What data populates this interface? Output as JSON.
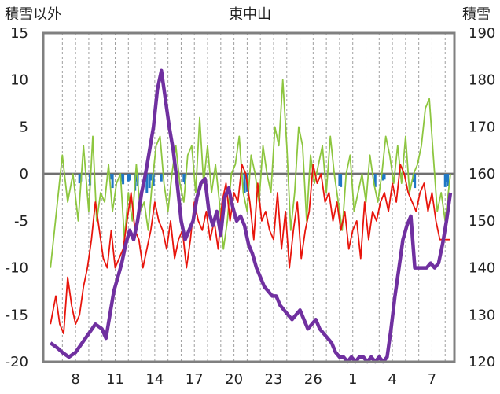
{
  "chart_data": {
    "type": "line",
    "title": "東中山",
    "ylabel_left": "積雪以外",
    "ylabel_right": "積雪",
    "yticks_left": [
      "15",
      "10",
      "5",
      "0",
      "-5",
      "-10",
      "-15",
      "-20"
    ],
    "yticks_right": [
      "190",
      "180",
      "170",
      "160",
      "150",
      "140",
      "130",
      "120"
    ],
    "ylim_left": [
      -20,
      15
    ],
    "ylim_right": [
      120,
      190
    ],
    "x_range": [
      0,
      28
    ],
    "xticks": [
      {
        "x": 1,
        "label": "8"
      },
      {
        "x": 4,
        "label": "11"
      },
      {
        "x": 7,
        "label": "14"
      },
      {
        "x": 10,
        "label": "17"
      },
      {
        "x": 13,
        "label": "20"
      },
      {
        "x": 16,
        "label": "23"
      },
      {
        "x": 19,
        "label": "26"
      },
      {
        "x": 22,
        "label": "1"
      },
      {
        "x": 25,
        "label": "4"
      },
      {
        "x": 28,
        "label": "7"
      }
    ],
    "grid": true,
    "colors": {
      "frame": "#808080",
      "grid": "#a0a0a0",
      "zero": "#707070"
    },
    "series": [
      {
        "axis": "left",
        "color": "#8dc63f",
        "kind": "line",
        "x": [
          -0.9,
          -0.6,
          -0.3,
          0.0,
          0.4,
          0.8,
          1.2,
          1.6,
          2.0,
          2.3,
          2.6,
          2.9,
          3.2,
          3.5,
          3.8,
          4.1,
          4.4,
          4.7,
          5.0,
          5.3,
          5.6,
          5.9,
          6.2,
          6.5,
          6.8,
          7.1,
          7.4,
          7.7,
          8.0,
          8.3,
          8.6,
          8.9,
          9.2,
          9.5,
          9.8,
          10.1,
          10.4,
          10.7,
          11.0,
          11.3,
          11.6,
          11.9,
          12.2,
          12.5,
          12.8,
          13.1,
          13.4,
          13.7,
          14.0,
          14.3,
          14.6,
          14.9,
          15.2,
          15.5,
          15.8,
          16.1,
          16.4,
          16.7,
          17.0,
          17.3,
          17.6,
          17.9,
          18.2,
          18.5,
          18.8,
          19.1,
          19.4,
          19.7,
          20.0,
          20.3,
          20.6,
          20.9,
          21.2,
          21.5,
          21.8,
          22.1,
          22.4,
          22.7,
          23.0,
          23.3,
          23.6,
          23.9,
          24.2,
          24.5,
          24.8,
          25.1,
          25.4,
          25.7,
          26.0,
          26.3,
          26.6,
          26.9,
          27.2,
          27.5,
          27.8,
          28.1,
          28.4,
          28.7,
          29.0,
          29.4
        ],
        "y": [
          -10,
          -6,
          -2,
          2,
          -3,
          0,
          -5,
          3,
          -4,
          4,
          -5,
          -2,
          -3,
          1,
          -4,
          -1,
          0,
          -7,
          -2,
          -5,
          1,
          -4,
          -3,
          -6,
          -1,
          3,
          4,
          -1,
          -4,
          0,
          3,
          -1,
          -3,
          2,
          3,
          -2,
          6,
          -1,
          3,
          -2,
          1,
          -3,
          -8,
          -5,
          0,
          1,
          4,
          -2,
          -4,
          2,
          0,
          -3,
          3,
          0,
          -2,
          5,
          3,
          10,
          3,
          -6,
          -2,
          5,
          3,
          -5,
          2,
          -1,
          1,
          3,
          -2,
          4,
          0,
          -3,
          -6,
          0,
          2,
          -4,
          -2,
          0,
          -3,
          2,
          -1,
          -3,
          0,
          4,
          2,
          -1,
          3,
          -1,
          4,
          -2,
          0,
          1,
          3,
          7,
          8,
          2,
          -4,
          -2,
          -5,
          0
        ]
      },
      {
        "axis": "left",
        "color": "#e8150c",
        "kind": "line",
        "x": [
          -0.9,
          -0.5,
          -0.2,
          0.1,
          0.4,
          0.7,
          1.0,
          1.3,
          1.6,
          1.9,
          2.2,
          2.5,
          2.8,
          3.1,
          3.4,
          3.7,
          4.0,
          4.3,
          4.6,
          4.9,
          5.2,
          5.5,
          5.8,
          6.1,
          6.4,
          6.7,
          7.0,
          7.3,
          7.6,
          7.9,
          8.2,
          8.5,
          8.8,
          9.1,
          9.4,
          9.7,
          10.0,
          10.3,
          10.6,
          10.9,
          11.2,
          11.5,
          11.8,
          12.1,
          12.4,
          12.7,
          13.0,
          13.3,
          13.6,
          13.9,
          14.2,
          14.5,
          14.8,
          15.1,
          15.4,
          15.7,
          16.0,
          16.3,
          16.6,
          16.9,
          17.2,
          17.5,
          17.8,
          18.1,
          18.4,
          18.7,
          19.0,
          19.3,
          19.6,
          19.9,
          20.2,
          20.5,
          20.8,
          21.1,
          21.4,
          21.7,
          22.0,
          22.3,
          22.6,
          22.9,
          23.2,
          23.5,
          23.8,
          24.1,
          24.4,
          24.7,
          25.0,
          25.3,
          25.6,
          25.9,
          26.2,
          26.5,
          26.8,
          27.1,
          27.4,
          27.7,
          28.0,
          28.3,
          28.6,
          29.0,
          29.4
        ],
        "y": [
          -16,
          -13,
          -16,
          -17,
          -11,
          -14,
          -16,
          -15,
          -12,
          -10,
          -7,
          -3,
          -6,
          -9,
          -10,
          -6,
          -10,
          -9,
          -8,
          -5,
          -2,
          -6,
          -7,
          -10,
          -8,
          -6,
          -3,
          -5,
          -6,
          -8,
          -5,
          -9,
          -7,
          -6,
          -10,
          -7,
          -3,
          -5,
          -6,
          -4,
          -7,
          -5,
          -8,
          -3,
          -1,
          -5,
          -2,
          -3,
          1,
          0,
          -3,
          -7,
          -1,
          -5,
          -4,
          -6,
          -7,
          -2,
          -8,
          -4,
          -10,
          -6,
          -3,
          -9,
          -6,
          -4,
          1,
          -1,
          0,
          -3,
          -2,
          -5,
          -3,
          -6,
          -4,
          -8,
          -6,
          -5,
          -9,
          -3,
          -7,
          -4,
          -5,
          -3,
          -2,
          -4,
          -1,
          -3,
          1,
          0,
          -2,
          -3,
          -4,
          -2,
          -1,
          -4,
          -2,
          -5,
          -7,
          -7,
          -7
        ]
      },
      {
        "axis": "right",
        "color": "#7030a0",
        "kind": "line",
        "x": [
          -0.9,
          -0.4,
          0.0,
          0.5,
          1.0,
          1.5,
          2.0,
          2.5,
          3.0,
          3.3,
          3.6,
          3.9,
          4.2,
          4.5,
          4.8,
          5.1,
          5.4,
          5.7,
          6.0,
          6.3,
          6.6,
          6.9,
          7.2,
          7.5,
          7.8,
          8.1,
          8.4,
          8.7,
          9.0,
          9.3,
          9.6,
          9.9,
          10.2,
          10.5,
          10.8,
          11.1,
          11.4,
          11.7,
          12.0,
          12.3,
          12.6,
          12.9,
          13.2,
          13.5,
          13.8,
          14.1,
          14.4,
          14.7,
          15.0,
          15.3,
          15.6,
          15.9,
          16.2,
          16.5,
          16.8,
          17.1,
          17.4,
          17.7,
          18.0,
          18.3,
          18.6,
          18.9,
          19.2,
          19.5,
          19.8,
          20.1,
          20.4,
          20.7,
          21.0,
          21.3,
          21.6,
          21.9,
          22.2,
          22.5,
          22.8,
          23.1,
          23.4,
          23.7,
          24.0,
          24.3,
          24.6,
          24.9,
          25.2,
          25.5,
          25.8,
          26.1,
          26.4,
          26.7,
          27.0,
          27.3,
          27.6,
          27.9,
          28.2,
          28.5,
          28.8,
          29.1,
          29.4
        ],
        "y": [
          124,
          123,
          122,
          121,
          122,
          124,
          126,
          128,
          127,
          125,
          130,
          135,
          138,
          141,
          145,
          148,
          146,
          150,
          156,
          160,
          165,
          170,
          178,
          182,
          176,
          170,
          165,
          158,
          150,
          146,
          148,
          150,
          155,
          158,
          159,
          152,
          149,
          152,
          147,
          155,
          157,
          153,
          150,
          151,
          149,
          145,
          143,
          140,
          138,
          136,
          135,
          134,
          134,
          132,
          131,
          130,
          129,
          130,
          131,
          129,
          127,
          128,
          129,
          127,
          126,
          125,
          124,
          122,
          121,
          121,
          120,
          121,
          120,
          121,
          121,
          120,
          121,
          120,
          121,
          120,
          121,
          127,
          134,
          140,
          146,
          149,
          151,
          140,
          140,
          140,
          140,
          141,
          140,
          141,
          145,
          150,
          156
        ]
      }
    ],
    "bars": {
      "axis": "left",
      "color": "#1f77c4",
      "x": [
        1.3,
        1.4,
        2.1,
        3.7,
        3.8,
        4.5,
        4.6,
        5.0,
        5.1,
        5.5,
        5.6,
        5.7,
        6.4,
        6.6,
        6.7,
        6.9,
        7.5,
        9.2,
        9.3,
        13.8,
        14.0,
        21.0,
        21.1,
        23.7,
        24.3,
        24.4,
        26.6,
        26.7,
        29.0,
        29.1,
        29.2
      ],
      "values": [
        -1,
        -0.8,
        -1.2,
        -0.6,
        -1.5,
        -0.8,
        -1.1,
        -0.8,
        -0.7,
        -1.8,
        -0.8,
        -1.3,
        -2,
        -1.5,
        -0.7,
        -1.3,
        -0.8,
        -0.9,
        -1.1,
        -2,
        -1.9,
        -1.3,
        -1.4,
        -1.4,
        -0.7,
        -0.6,
        -0.9,
        -1.5,
        -1.4,
        -0.9,
        -1.3
      ]
    }
  }
}
